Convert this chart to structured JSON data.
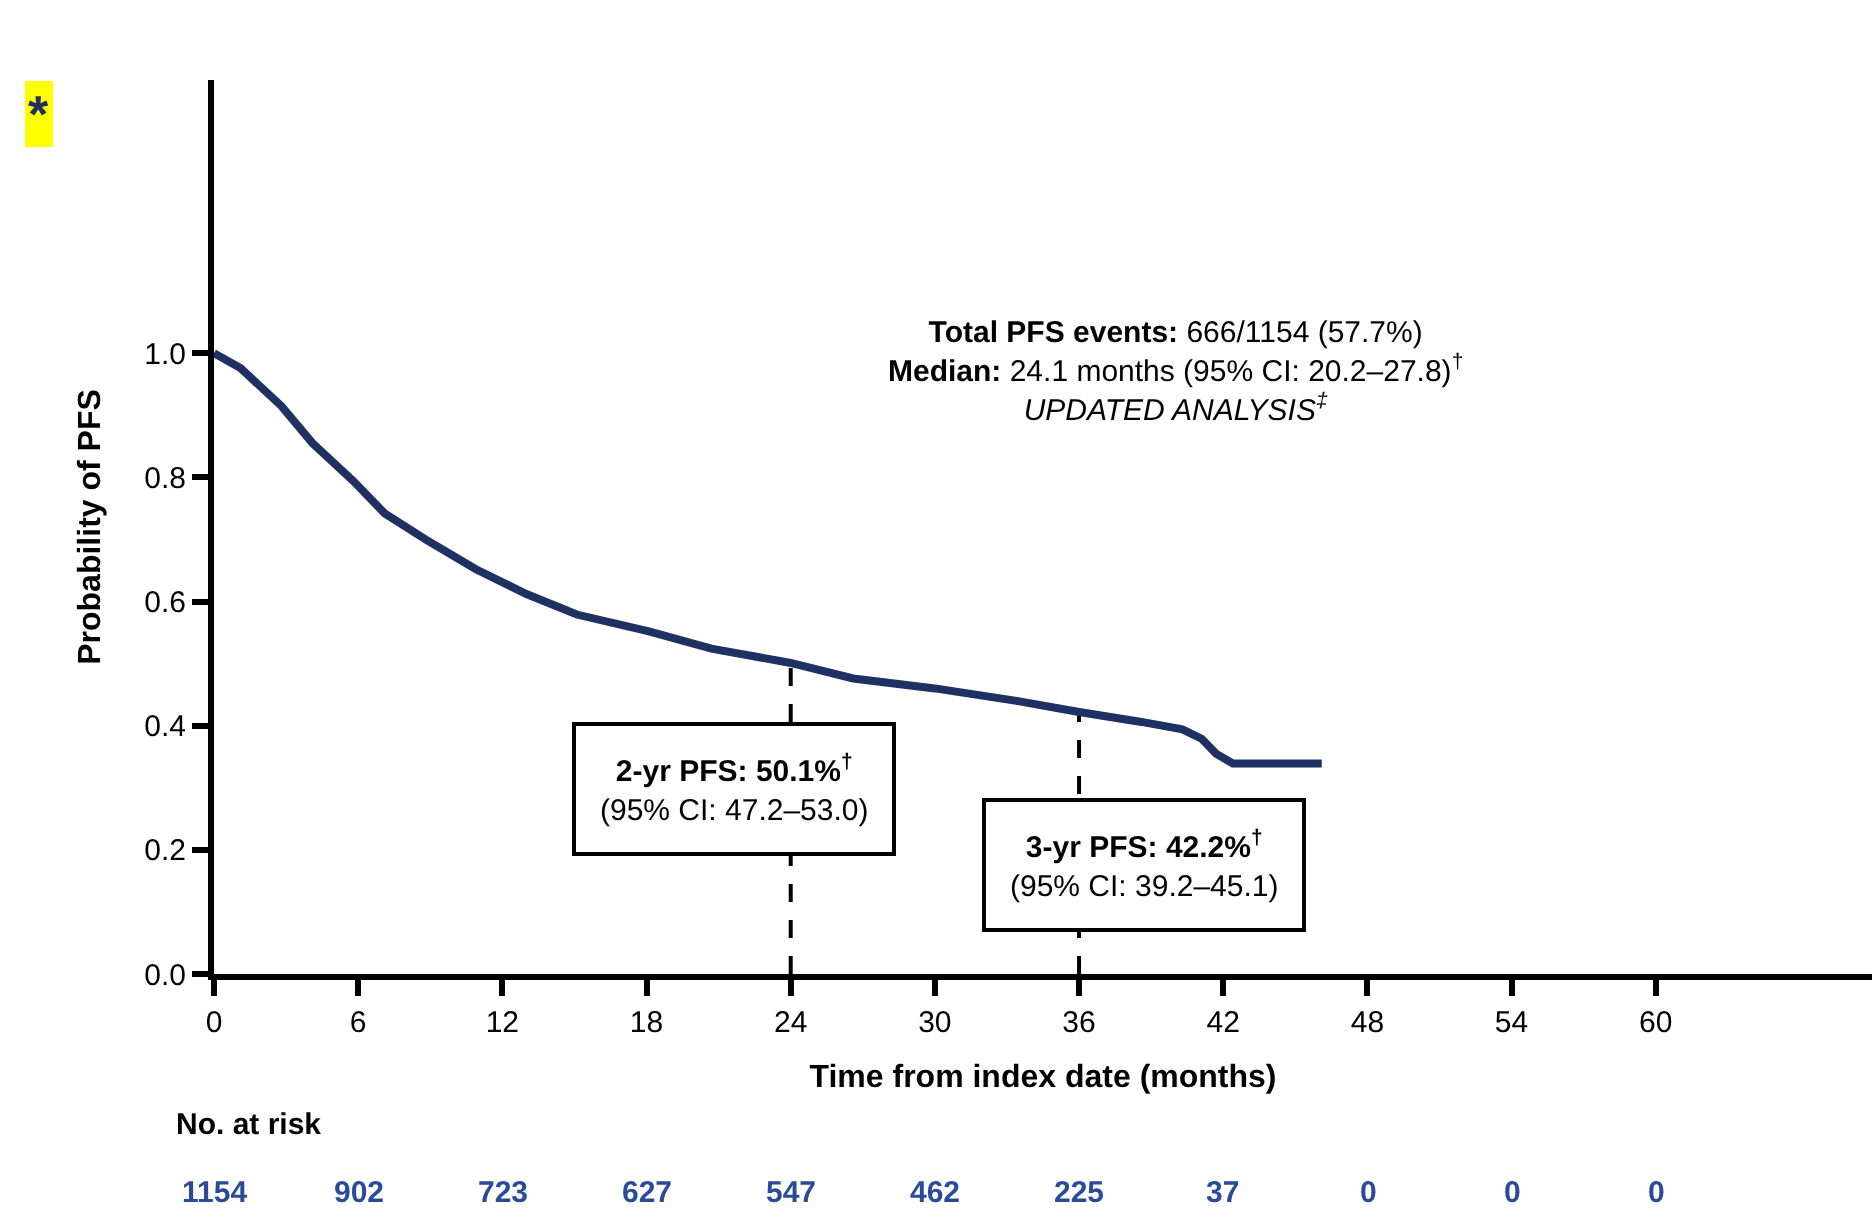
{
  "chart_data": {
    "type": "line",
    "color": "#1f3162",
    "x": [
      0,
      1.1,
      2.8,
      4.1,
      5.8,
      7.1,
      8.8,
      10.9,
      13,
      15.1,
      18.1,
      20.7,
      24,
      26.6,
      30,
      33.4,
      36,
      38.6,
      40.3,
      41.1,
      41.7,
      42.4,
      46.1
    ],
    "values": [
      1.0,
      0.976,
      0.915,
      0.855,
      0.794,
      0.742,
      0.7,
      0.652,
      0.612,
      0.579,
      0.552,
      0.524,
      0.501,
      0.476,
      0.46,
      0.44,
      0.422,
      0.406,
      0.394,
      0.379,
      0.355,
      0.339,
      0.339
    ],
    "xlabel": "Time from index date (months)",
    "ylabel": "Probability of PFS",
    "xlim": [
      0,
      69
    ],
    "xticks": [
      0,
      6,
      12,
      18,
      24,
      30,
      36,
      42,
      48,
      54,
      60
    ],
    "ylim": [
      0,
      1.44
    ],
    "yticks": [
      {
        "value": 0,
        "label": "0.0"
      },
      {
        "value": 0.2,
        "label": "0.2"
      },
      {
        "value": 0.4,
        "label": "0.4"
      },
      {
        "value": 0.6,
        "label": "0.6"
      },
      {
        "value": 0.8,
        "label": "0.8"
      },
      {
        "value": 1.0,
        "label": "1.0"
      }
    ],
    "ref_lines": [
      {
        "axis": "x",
        "value": 24,
        "line_style": "dashed"
      },
      {
        "axis": "x",
        "value": 36,
        "line_style": "dashed"
      }
    ],
    "annotations": [
      "*",
      "2-yr PFS: 50.1%$^{†}$\n(95% CI: 47.2–53.0)",
      "3-yr PFS: 42.2%$^{†}$\n(95% CI: 39.2–45.1)",
      "Total PFS events: 666/1154 (57.7%)\nMedian: 24.1 months (95% CI: 20.2–27.8)$^{†}$\nUPDATED ANALYSIS$^{‡}$",
      "No. at risk",
      "1154",
      "902",
      "723",
      "627",
      "547",
      "462",
      "225",
      "37",
      "0",
      "0",
      "0"
    ]
  }
}
